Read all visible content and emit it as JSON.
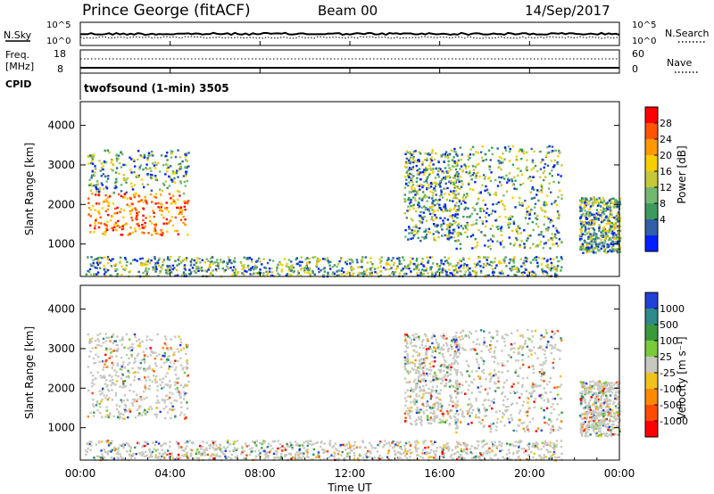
{
  "header": {
    "station": "Prince George (fitACF)",
    "beam": "Beam 00",
    "date": "14/Sep/2017"
  },
  "sky_panel": {
    "left_label": "N.Sky",
    "right_label": "N.Search",
    "left_ticks": [
      "10^5",
      "10^0"
    ],
    "right_ticks": [
      "10^5",
      "10^0"
    ]
  },
  "freq_panel": {
    "label_line1": "Freq.",
    "label_line2": "[MHz]",
    "left_ticks": [
      "18",
      "8"
    ],
    "right_ticks": [
      "60",
      "0"
    ],
    "right_label": "Nave",
    "cpid_label": "CPID",
    "program": "twofsound (1-min) 3505"
  },
  "chart_data": [
    {
      "type": "heatmap",
      "name": "power",
      "ylabel": "Slant Range [km]",
      "ylim": [
        180,
        4600
      ],
      "yticks": [
        1000,
        2000,
        3000,
        4000
      ],
      "xlim": [
        0,
        24
      ],
      "colorbar": {
        "label": "Power [dB]",
        "ticks": [
          "28",
          "24",
          "20",
          "16",
          "12",
          "8",
          "4"
        ],
        "colors": [
          "#ff0000",
          "#ff5500",
          "#ff9900",
          "#f7cf00",
          "#c6c839",
          "#74b870",
          "#3c9a5c",
          "#2f5fa8",
          "#0020ff"
        ]
      },
      "regions": [
        {
          "x0": 0.3,
          "x1": 4.8,
          "y0": 1250,
          "y1": 3400
        },
        {
          "x0": 14.4,
          "x1": 16.8,
          "y0": 1100,
          "y1": 3400
        },
        {
          "x0": 16.6,
          "x1": 21.4,
          "y0": 900,
          "y1": 3500
        },
        {
          "x0": 22.2,
          "x1": 24.0,
          "y0": 800,
          "y1": 2200
        },
        {
          "x0": 0.2,
          "x1": 21.4,
          "y0": 200,
          "y1": 700
        }
      ]
    },
    {
      "type": "heatmap",
      "name": "velocity",
      "ylabel": "Slant Range [km]",
      "ylim": [
        180,
        4600
      ],
      "yticks": [
        1000,
        2000,
        3000,
        4000
      ],
      "xlim": [
        0,
        24
      ],
      "xlabel": "Time UT",
      "xticks": [
        "00:00",
        "04:00",
        "08:00",
        "12:00",
        "16:00",
        "20:00",
        "00:00"
      ],
      "colorbar": {
        "label": "Velocity [m s⁻¹]",
        "ticks": [
          "1000",
          "500",
          "100",
          "25",
          "-25",
          "-100",
          "-500",
          "-1000"
        ],
        "colors": [
          "#2040d8",
          "#2c8a8a",
          "#3a9a3a",
          "#7acb3a",
          "#c8c8c0",
          "#f0c21c",
          "#ff8a00",
          "#ff4d00",
          "#ff0000"
        ]
      },
      "regions": [
        {
          "x0": 0.3,
          "x1": 4.8,
          "y0": 1250,
          "y1": 3400
        },
        {
          "x0": 14.4,
          "x1": 16.8,
          "y0": 1100,
          "y1": 3400
        },
        {
          "x0": 16.6,
          "x1": 21.4,
          "y0": 900,
          "y1": 3500
        },
        {
          "x0": 22.2,
          "x1": 24.0,
          "y0": 800,
          "y1": 2200
        },
        {
          "x0": 0.2,
          "x1": 21.4,
          "y0": 200,
          "y1": 700
        }
      ]
    }
  ]
}
